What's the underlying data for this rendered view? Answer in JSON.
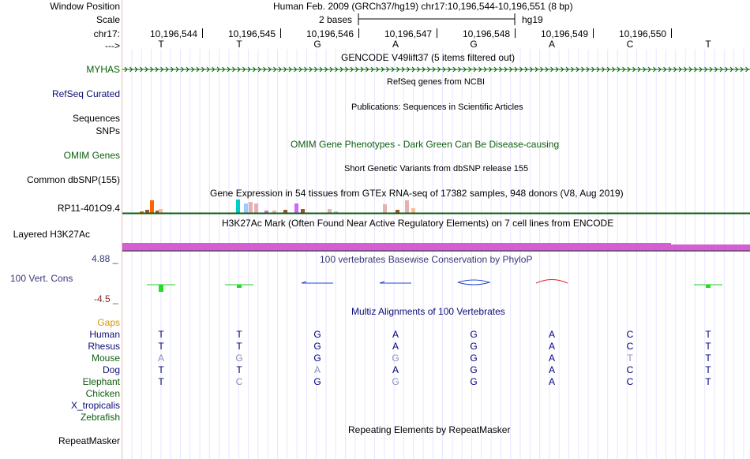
{
  "colors": {
    "gene_green": "#006400",
    "refseq_blue": "#0c0c78",
    "omim_green": "#0e5e0e",
    "cons_blue": "#383878",
    "h3k_purple": "#d45fd4",
    "divider": "#e8b9b9",
    "grid": "#e6e6ff",
    "neg_label": "#8b2a2a",
    "gaps_orange": "#d99400"
  },
  "header": {
    "window_position_label": "Window Position",
    "window_title": "Human Feb. 2009 (GRCh37/hg19)   chr17:10,196,544-10,196,551 (8 bp)",
    "scale_label": "Scale",
    "scale_value": "2 bases",
    "scale_assembly": "hg19",
    "chrom_label": "chr17:",
    "arrow_label": "--->"
  },
  "positions": [
    "10,196,544",
    "10,196,545",
    "10,196,546",
    "10,196,547",
    "10,196,548",
    "10,196,549",
    "10,196,550"
  ],
  "sequence": [
    "T",
    "T",
    "G",
    "A",
    "G",
    "A",
    "C",
    "T"
  ],
  "tracks": {
    "gencode_title": "GENCODE V49lift37 (5 items filtered out)",
    "myhas_label": "MYHAS",
    "refseq_title": "RefSeq genes from NCBI",
    "refseq_label": "RefSeq Curated",
    "publications_title": "Publications: Sequences in Scientific Articles",
    "sequences_label": "Sequences",
    "snps_label": "SNPs",
    "omim_title": "OMIM Gene Phenotypes - Dark Green Can Be Disease-causing",
    "omim_label": "OMIM Genes",
    "dbsnp_title": "Short Genetic Variants from dbSNP release 155",
    "dbsnp_label": "Common dbSNP(155)",
    "gtex_title": "Gene Expression in 54 tissues from GTEx RNA-seq of 17382 samples, 948 donors (V8, Aug 2019)",
    "gtex_label": "RP11-401O9.4",
    "h3k_title": "H3K27Ac Mark (Often Found Near Active Regulatory Elements) on 7 cell lines from ENCODE",
    "h3k_label": "Layered H3K27Ac",
    "cons_title": "100 vertebrates Basewise Conservation by PhyloP",
    "cons_label": "100 Vert. Cons",
    "cons_max": "4.88 _",
    "cons_min": "-4.5 _",
    "multiz_title": "Multiz Alignments of 100 Vertebrates",
    "gaps_label": "Gaps",
    "rmsk_title": "Repeating Elements by RepeatMasker",
    "rmsk_label": "RepeatMasker"
  },
  "species": [
    {
      "name": "Human",
      "color": "#0c0c78",
      "bases": [
        "T",
        "T",
        "G",
        "A",
        "G",
        "A",
        "C",
        "T"
      ],
      "faded": [
        false,
        false,
        false,
        false,
        false,
        false,
        false,
        false
      ]
    },
    {
      "name": "Rhesus",
      "color": "#0c0c78",
      "bases": [
        "T",
        "T",
        "G",
        "A",
        "G",
        "A",
        "C",
        "T"
      ],
      "faded": [
        false,
        false,
        false,
        false,
        false,
        false,
        false,
        false
      ]
    },
    {
      "name": "Mouse",
      "color": "#0e5e0e",
      "bases": [
        "A",
        "G",
        "G",
        "G",
        "G",
        "A",
        "T",
        "T"
      ],
      "faded": [
        true,
        true,
        false,
        true,
        false,
        false,
        true,
        false
      ]
    },
    {
      "name": "Dog",
      "color": "#0c0c78",
      "bases": [
        "T",
        "T",
        "A",
        "A",
        "G",
        "A",
        "C",
        "T"
      ],
      "faded": [
        false,
        false,
        true,
        false,
        false,
        false,
        false,
        false
      ]
    },
    {
      "name": "Elephant",
      "color": "#0e5e0e",
      "bases": [
        "T",
        "C",
        "G",
        "G",
        "G",
        "A",
        "C",
        "T"
      ],
      "faded": [
        false,
        true,
        false,
        true,
        false,
        false,
        false,
        false
      ]
    },
    {
      "name": "Chicken",
      "color": "#0e5e0e",
      "bases": [],
      "faded": []
    },
    {
      "name": "X_tropicalis",
      "color": "#0c0c78",
      "bases": [],
      "faded": []
    },
    {
      "name": "Zebrafish",
      "color": "#0e5e0e",
      "bases": [],
      "faded": []
    }
  ],
  "gtex_colors": [
    "#ff6600",
    "#ffaa99",
    "#00cccc",
    "#99ccff",
    "#e6b0b0",
    "#cc66ff",
    "#a0522d",
    "#ffbb99"
  ],
  "cons_shapes": [
    "cons-green-bar",
    "cons-green-bar",
    "cons-blue-arrow",
    "cons-blue-arrow",
    "cons-blue-loop",
    "cons-red-arc",
    "",
    "cons-green-bar"
  ]
}
